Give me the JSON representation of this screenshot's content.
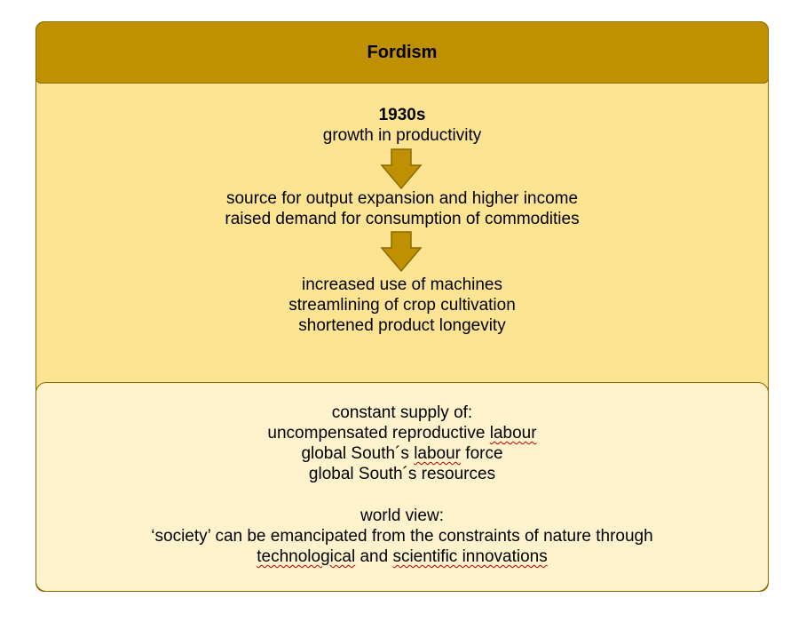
{
  "title": "Fordism",
  "upper": {
    "block1": {
      "year": "1930s",
      "line": "growth in productivity"
    },
    "block2": {
      "lines": [
        "source for output expansion and higher income",
        "raised demand for consumption of commodities"
      ]
    },
    "block3": {
      "lines": [
        "increased use of machines",
        "streamlining of crop cultivation",
        "shortened product longevity"
      ]
    }
  },
  "lower": {
    "supply_heading": "constant supply of:",
    "supply_1_pre": "uncompensated reproductive ",
    "supply_1_word": "labour",
    "supply_2_pre": "global South´s ",
    "supply_2_word": "labour",
    "supply_2_post": " force",
    "supply_3": "global South´s resources",
    "worldview_heading": "world view:",
    "worldview_line1": "‘society’ can be emancipated from the constraints of nature through",
    "worldview_w1": "technological",
    "worldview_and": " and ",
    "worldview_w2": "scientific innovations"
  },
  "colors": {
    "header": "#bf9000",
    "upper_fill": "#fde493",
    "lower_fill": "#fef3cd",
    "arrow": "#bf9000",
    "border": "#8a6a00"
  },
  "icons": [
    "down-arrow-icon",
    "down-arrow-icon"
  ]
}
